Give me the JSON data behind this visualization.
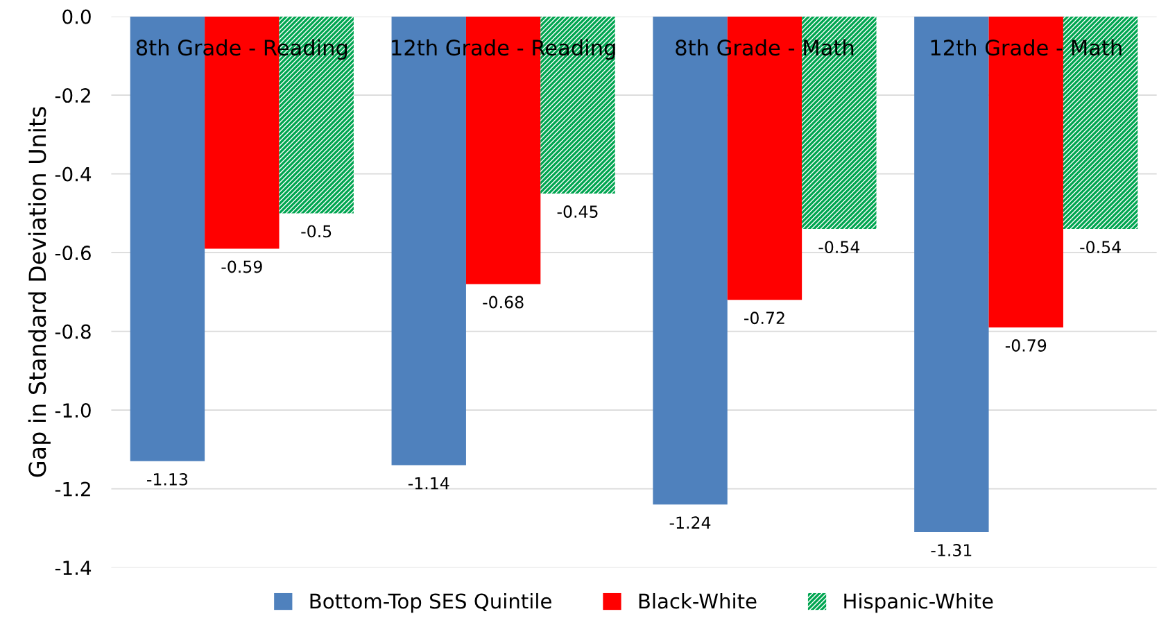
{
  "chart_data": {
    "type": "bar",
    "ylabel": "Gap in Standard Deviation Units",
    "categories": [
      "8th Grade - Reading",
      "12th Grade - Reading",
      "8th Grade - Math",
      "12th Grade - Math"
    ],
    "series": [
      {
        "name": "Bottom-Top SES Quintile",
        "color": "#4f81bd",
        "values": [
          -1.13,
          -1.14,
          -1.24,
          -1.31
        ]
      },
      {
        "name": "Black-White",
        "color": "#ff0000",
        "values": [
          -0.59,
          -0.68,
          -0.72,
          -0.79
        ]
      },
      {
        "name": "Hispanic-White",
        "color": "#00a550",
        "values": [
          -0.5,
          -0.45,
          -0.54,
          -0.54
        ]
      }
    ],
    "ylim": [
      -1.4,
      0
    ],
    "yticks": [
      {
        "value": 0,
        "label": "0.0"
      },
      {
        "value": -0.2,
        "label": "-0.2"
      },
      {
        "value": -0.4,
        "label": "-0.4"
      },
      {
        "value": -0.6,
        "label": "-0.6"
      },
      {
        "value": -0.8,
        "label": "-0.8"
      },
      {
        "value": -1.0,
        "label": "-1.0"
      },
      {
        "value": -1.2,
        "label": "-1.2"
      },
      {
        "value": -1.4,
        "label": "-1.4"
      }
    ],
    "grid": "y",
    "legend": "bottom",
    "data_labels": true
  }
}
